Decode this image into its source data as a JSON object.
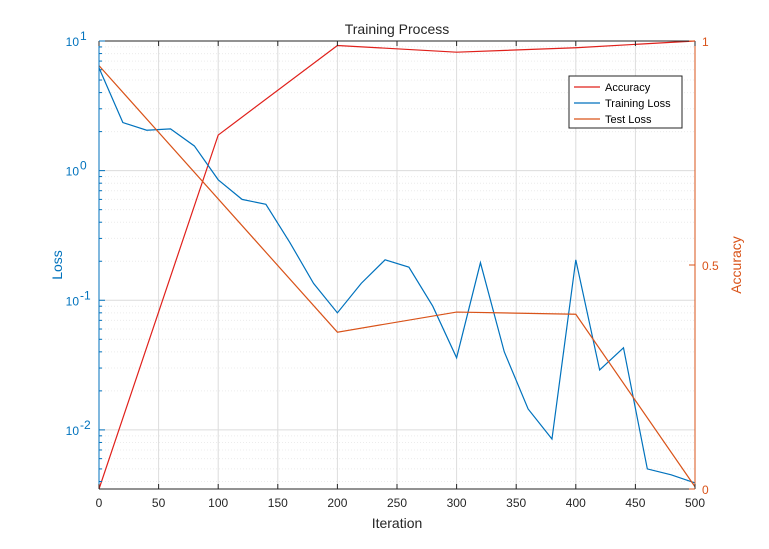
{
  "chart_data": {
    "type": "line",
    "title": "Training Process",
    "xlabel": "Iteration",
    "ylabel_left": "Loss",
    "ylabel_right": "Accuracy",
    "xlim": [
      0,
      500
    ],
    "ylim_left": [
      0.0035,
      10
    ],
    "yscale_left": "log",
    "ylim_right": [
      0,
      1
    ],
    "grid": true,
    "legend_position": "top-right",
    "x_ticks": [
      "0",
      "50",
      "100",
      "150",
      "200",
      "250",
      "300",
      "350",
      "400",
      "450",
      "500"
    ],
    "y_left_ticks": [
      {
        "value": 10,
        "base": "10",
        "exp": "1"
      },
      {
        "value": 1,
        "base": "10",
        "exp": "0"
      },
      {
        "value": 0.1,
        "base": "10",
        "exp": "-1"
      },
      {
        "value": 0.01,
        "base": "10",
        "exp": "-2"
      }
    ],
    "y_right_ticks": [
      "0",
      "0.5",
      "1"
    ],
    "series": [
      {
        "name": "Accuracy",
        "axis": "right",
        "color": "#e0201b",
        "x": [
          0,
          100,
          200,
          300,
          400,
          500
        ],
        "y": [
          0.0,
          0.79,
          0.99,
          0.975,
          0.985,
          1.0
        ]
      },
      {
        "name": "Training Loss",
        "axis": "left",
        "color": "#0072bd",
        "x": [
          0,
          20,
          40,
          60,
          80,
          100,
          120,
          140,
          160,
          180,
          200,
          220,
          240,
          260,
          280,
          300,
          320,
          340,
          360,
          380,
          400,
          420,
          440,
          460,
          480,
          500
        ],
        "y": [
          6.2,
          2.35,
          2.05,
          2.1,
          1.55,
          0.85,
          0.6,
          0.55,
          0.28,
          0.135,
          0.08,
          0.135,
          0.205,
          0.18,
          0.09,
          0.036,
          0.195,
          0.04,
          0.0145,
          0.0085,
          0.205,
          0.029,
          0.043,
          0.005,
          0.0045,
          0.0039
        ]
      },
      {
        "name": "Test Loss",
        "axis": "right",
        "color": "#d95319",
        "x": [
          0,
          200,
          300,
          400,
          500
        ],
        "y": [
          0.945,
          0.35,
          0.395,
          0.39,
          0.005
        ]
      }
    ]
  }
}
